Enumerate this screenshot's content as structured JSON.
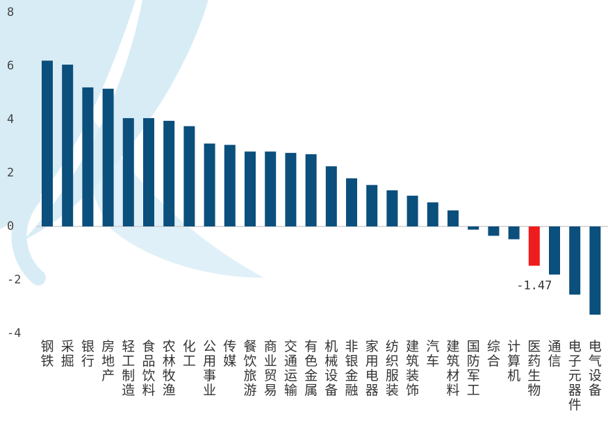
{
  "chart_data": {
    "type": "bar",
    "categories": [
      "钢铁",
      "采掘",
      "银行",
      "房地产",
      "轻工制造",
      "食品饮料",
      "农林牧渔",
      "化工",
      "公用事业",
      "传媒",
      "餐饮旅游",
      "商业贸易",
      "交通运输",
      "有色金属",
      "机械设备",
      "非银金融",
      "家用电器",
      "纺织服装",
      "建筑装饰",
      "汽车",
      "建筑材料",
      "国防军工",
      "综合",
      "计算机",
      "医药生物",
      "通信",
      "电子元器件",
      "电气设备"
    ],
    "values": [
      6.2,
      6.05,
      5.2,
      5.15,
      4.05,
      4.05,
      3.95,
      3.75,
      3.1,
      3.05,
      2.8,
      2.8,
      2.75,
      2.7,
      2.25,
      1.8,
      1.55,
      1.35,
      1.15,
      0.9,
      0.6,
      -0.12,
      -0.35,
      -0.48,
      -1.47,
      -1.8,
      -2.55,
      -3.3
    ],
    "highlight_index": 24,
    "data_labels": [
      {
        "index": 24,
        "text": "-1.47"
      }
    ],
    "yticks": [
      "8",
      "6",
      "4",
      "2",
      "0",
      "-2",
      "-4"
    ],
    "ylim": [
      -4,
      8
    ],
    "grid": false,
    "colors": {
      "bar": "#0b4f7c",
      "highlight": "#ee1c1c",
      "axis": "#cfcfcf",
      "watermark": "#d8ecf6"
    }
  }
}
